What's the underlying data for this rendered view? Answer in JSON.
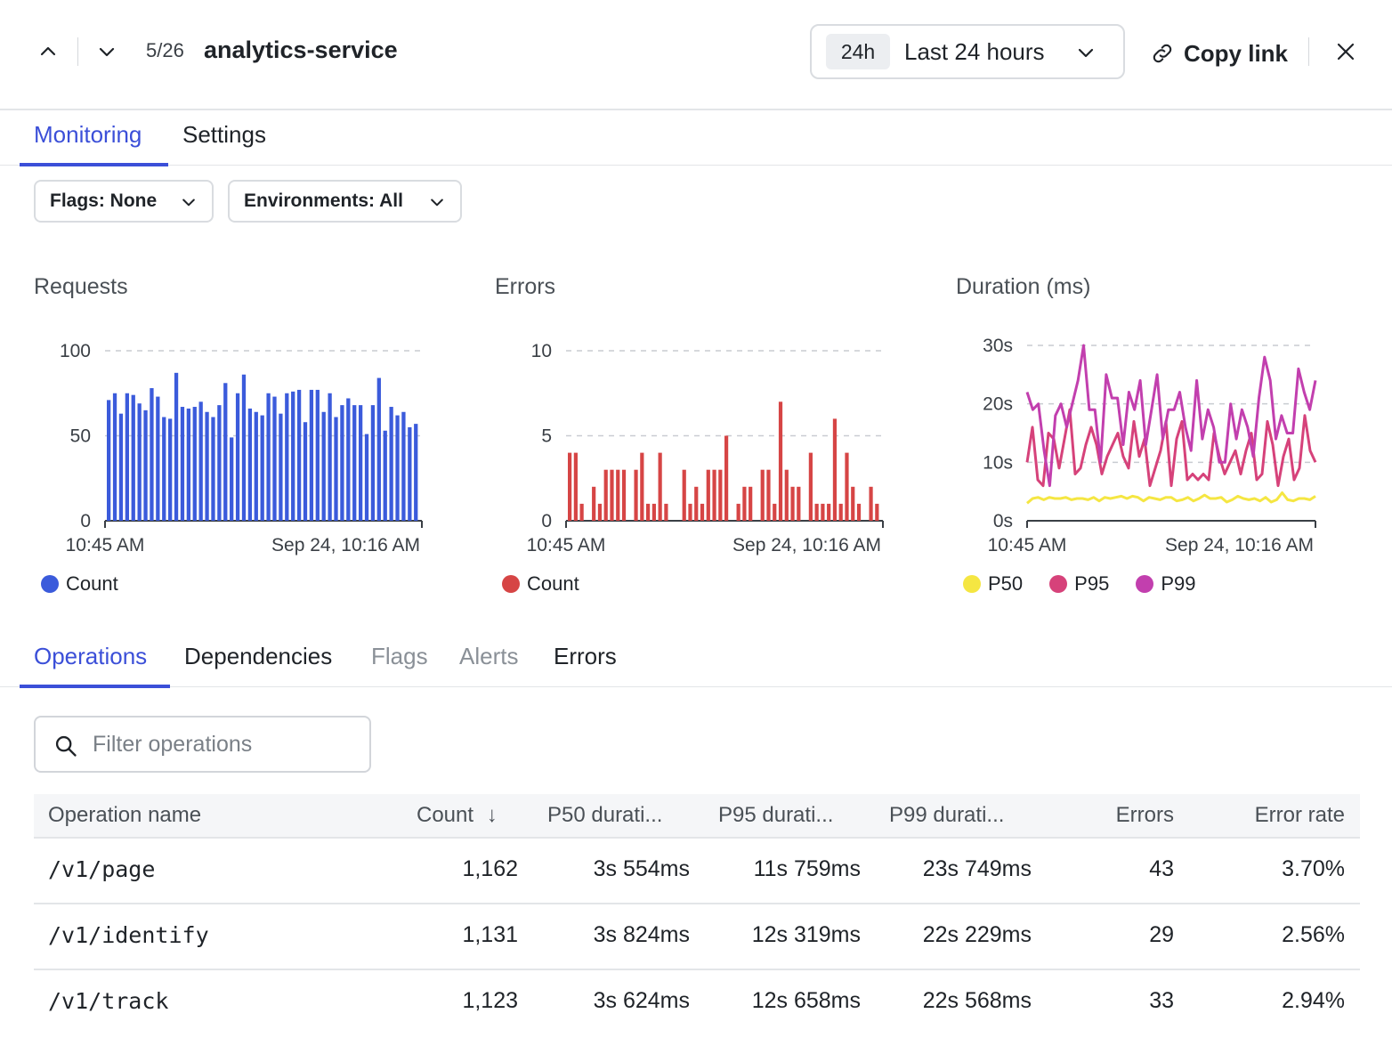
{
  "header": {
    "counter": "5/26",
    "title": "analytics-service",
    "time_badge": "24h",
    "time_label": "Last 24 hours",
    "copy_link_label": "Copy link"
  },
  "main_tabs": [
    {
      "label": "Monitoring",
      "active": true
    },
    {
      "label": "Settings",
      "active": false
    }
  ],
  "filters": {
    "flags_label": "Flags: None",
    "environments_label": "Environments: All"
  },
  "charts": {
    "requests": {
      "title": "Requests",
      "legend": [
        {
          "label": "Count",
          "color": "#3b5bdb"
        }
      ]
    },
    "errors": {
      "title": "Errors",
      "legend": [
        {
          "label": "Count",
          "color": "#d64545"
        }
      ]
    },
    "duration": {
      "title": "Duration (ms)",
      "legend": [
        {
          "label": "P50",
          "color": "#f5e642"
        },
        {
          "label": "P95",
          "color": "#d6427a"
        },
        {
          "label": "P99",
          "color": "#c23fae"
        }
      ]
    }
  },
  "chart_data": [
    {
      "type": "bar",
      "title": "Requests",
      "color": "#3b5bdb",
      "x_tick_labels": [
        "10:45 AM",
        "Sep 24, 10:16 AM"
      ],
      "ylim": [
        0,
        100
      ],
      "y_ticks": [
        "0",
        "50",
        "100"
      ],
      "grid": true,
      "series": [
        {
          "name": "Count",
          "values": [
            71,
            75,
            63,
            75,
            74,
            69,
            65,
            78,
            73,
            61,
            60,
            87,
            67,
            66,
            67,
            70,
            64,
            61,
            68,
            81,
            49,
            75,
            86,
            66,
            64,
            62,
            75,
            73,
            63,
            75,
            76,
            77,
            58,
            77,
            77,
            64,
            75,
            61,
            68,
            72,
            68,
            68,
            51,
            68,
            84,
            53,
            67,
            62,
            64,
            55,
            57
          ]
        }
      ]
    },
    {
      "type": "bar",
      "title": "Errors",
      "color": "#d64545",
      "x_tick_labels": [
        "10:45 AM",
        "Sep 24, 10:16 AM"
      ],
      "ylim": [
        0,
        10
      ],
      "y_ticks": [
        "0",
        "5",
        "10"
      ],
      "grid": true,
      "series": [
        {
          "name": "Count",
          "values": [
            4,
            4,
            1,
            0,
            2,
            1,
            3,
            3,
            3,
            3,
            0,
            3,
            4,
            1,
            1,
            4,
            1,
            0,
            0,
            3,
            1,
            2,
            1,
            3,
            3,
            3,
            5,
            0,
            1,
            2,
            2,
            0,
            3,
            3,
            1,
            7,
            3,
            2,
            2,
            0,
            4,
            1,
            1,
            1,
            6,
            1,
            4,
            2,
            1,
            0,
            2,
            1
          ]
        }
      ]
    },
    {
      "type": "line",
      "title": "Duration (ms)",
      "x_tick_labels": [
        "10:45 AM",
        "Sep 24, 10:16 AM"
      ],
      "y_ticks": [
        "0s",
        "10s",
        "20s",
        "30s"
      ],
      "ylim_seconds": [
        0,
        30
      ],
      "grid": true,
      "series": [
        {
          "name": "P50",
          "color": "#f5e642",
          "values": [
            3,
            3.8,
            4,
            3.6,
            4,
            3.8,
            3.8,
            4,
            3.6,
            3.8,
            3.8,
            3.6,
            4,
            3.4,
            4,
            3.8,
            4,
            4.2,
            3.8,
            4.2,
            4,
            3.4,
            4,
            3.8,
            3.6,
            4,
            4,
            3.4,
            3.6,
            4,
            3.4,
            3.8,
            4.4,
            3.8,
            3.8,
            4,
            3.2,
            3.6,
            4.2,
            3.8,
            3.6,
            3.8,
            3.4,
            4,
            3.2,
            3.6,
            4.8,
            3.6,
            3.4,
            3.8,
            3.8,
            3.6,
            4.2
          ]
        },
        {
          "name": "P95",
          "color": "#d6427a",
          "values": [
            10,
            16,
            7,
            6,
            15,
            14,
            9,
            14,
            19,
            8,
            9,
            13,
            16,
            13,
            8,
            11,
            13,
            15,
            11,
            9,
            17,
            11,
            14,
            6,
            9,
            12,
            17,
            6,
            14,
            17,
            7,
            8,
            7,
            8,
            7,
            15,
            11,
            8,
            10,
            12,
            8,
            12,
            15,
            7,
            8,
            17,
            13,
            6,
            11,
            14,
            7,
            9,
            18,
            12,
            10
          ]
        },
        {
          "name": "P99",
          "color": "#c23fae",
          "values": [
            22,
            19,
            20,
            12,
            6,
            18,
            20,
            16,
            20,
            24,
            30,
            19,
            19,
            10,
            25,
            21,
            21,
            13,
            22,
            19,
            24,
            13,
            19,
            25,
            14,
            19,
            19,
            22,
            16,
            12,
            24,
            14,
            19,
            16,
            10,
            10,
            20,
            14,
            19,
            16,
            11,
            21,
            28,
            24,
            14,
            18,
            15,
            15,
            26,
            22,
            19,
            24
          ]
        }
      ]
    }
  ],
  "sub_tabs": [
    {
      "label": "Operations",
      "state": "active"
    },
    {
      "label": "Dependencies",
      "state": "normal"
    },
    {
      "label": "Flags",
      "state": "muted"
    },
    {
      "label": "Alerts",
      "state": "muted"
    },
    {
      "label": "Errors",
      "state": "normal"
    }
  ],
  "search": {
    "placeholder": "Filter operations",
    "value": ""
  },
  "table": {
    "columns": [
      "Operation name",
      "Count",
      "P50 durati...",
      "P95 durati...",
      "P99 durati...",
      "Errors",
      "Error rate"
    ],
    "sort_indicator": "↓",
    "rows": [
      [
        "/v1/page",
        "1,162",
        "3s 554ms",
        "11s 759ms",
        "23s 749ms",
        "43",
        "3.70%"
      ],
      [
        "/v1/identify",
        "1,131",
        "3s 824ms",
        "12s 319ms",
        "22s 229ms",
        "29",
        "2.56%"
      ],
      [
        "/v1/track",
        "1,123",
        "3s 624ms",
        "12s 658ms",
        "22s 568ms",
        "33",
        "2.94%"
      ]
    ]
  }
}
